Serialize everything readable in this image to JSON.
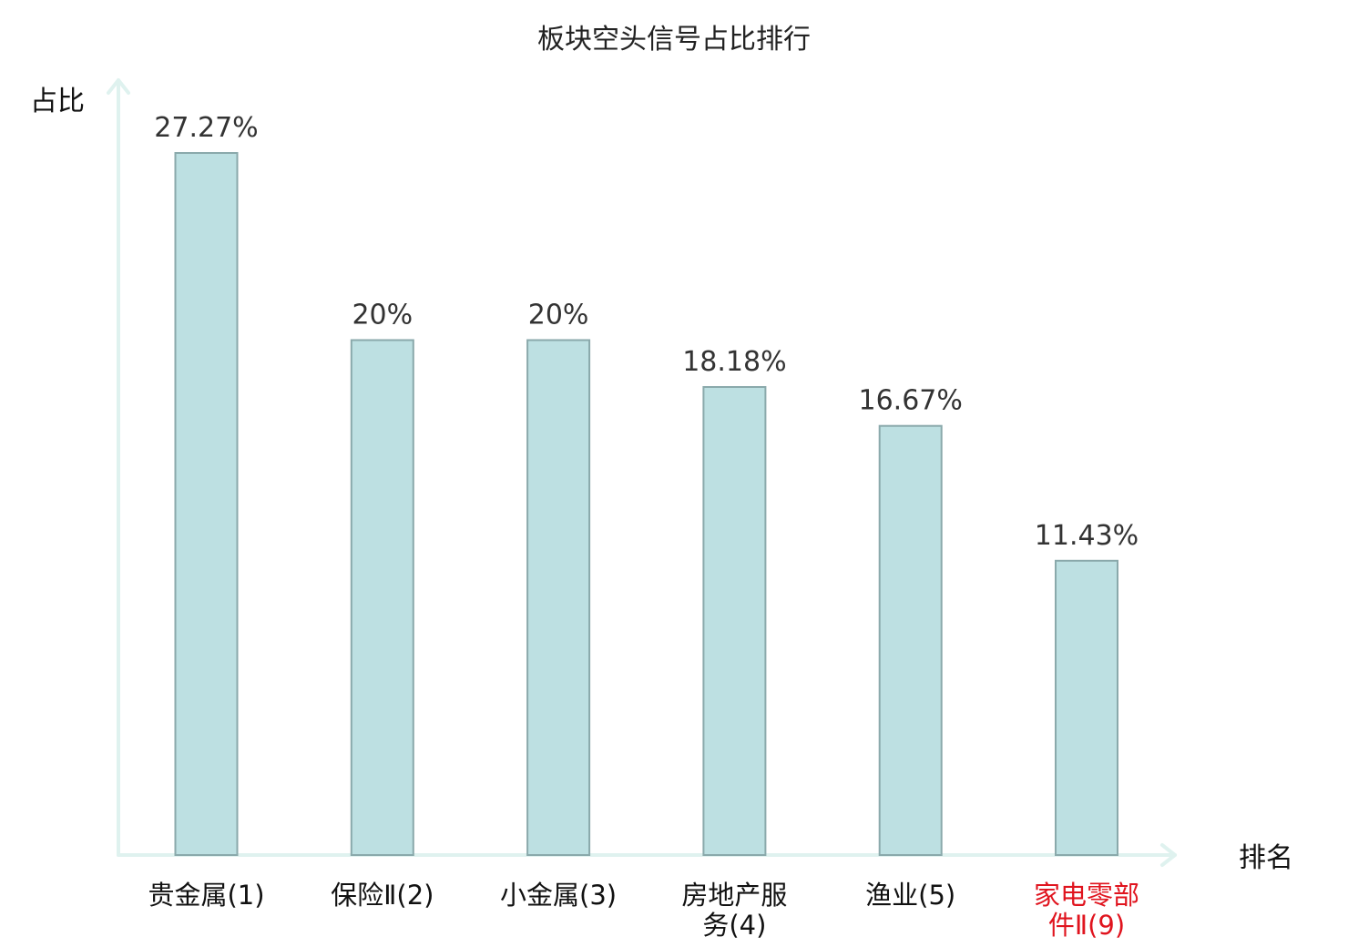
{
  "chart_data": {
    "type": "bar",
    "title": "板块空头信号占比排行",
    "ylabel": "占比",
    "xlabel": "排名",
    "categories": [
      "贵金属(1)",
      "保险Ⅱ(2)",
      "小金属(3)",
      "房地产服务(4)",
      "渔业(5)",
      "家电零部件Ⅱ(9)"
    ],
    "category_lines": [
      [
        "贵金属(1)"
      ],
      [
        "保险Ⅱ(2)"
      ],
      [
        "小金属(3)"
      ],
      [
        "房地产服",
        "务(4)"
      ],
      [
        "渔业(5)"
      ],
      [
        "家电零部",
        "件Ⅱ(9)"
      ]
    ],
    "values": [
      27.27,
      20,
      20,
      18.18,
      16.67,
      11.43
    ],
    "value_labels": [
      "27.27%",
      "20%",
      "20%",
      "18.18%",
      "16.67%",
      "11.43%"
    ],
    "highlighted_categories": [
      "家电零部件Ⅱ(9)"
    ],
    "ylim": [
      0,
      27.27
    ],
    "grid": false,
    "legend": "none",
    "colors": {
      "bar_fill": "#bde0e2",
      "bar_stroke": "#8aa9ab",
      "axis": "#dff2ef",
      "highlight_text": "#e0141e",
      "text": "#111111",
      "value_text": "#333333"
    }
  }
}
